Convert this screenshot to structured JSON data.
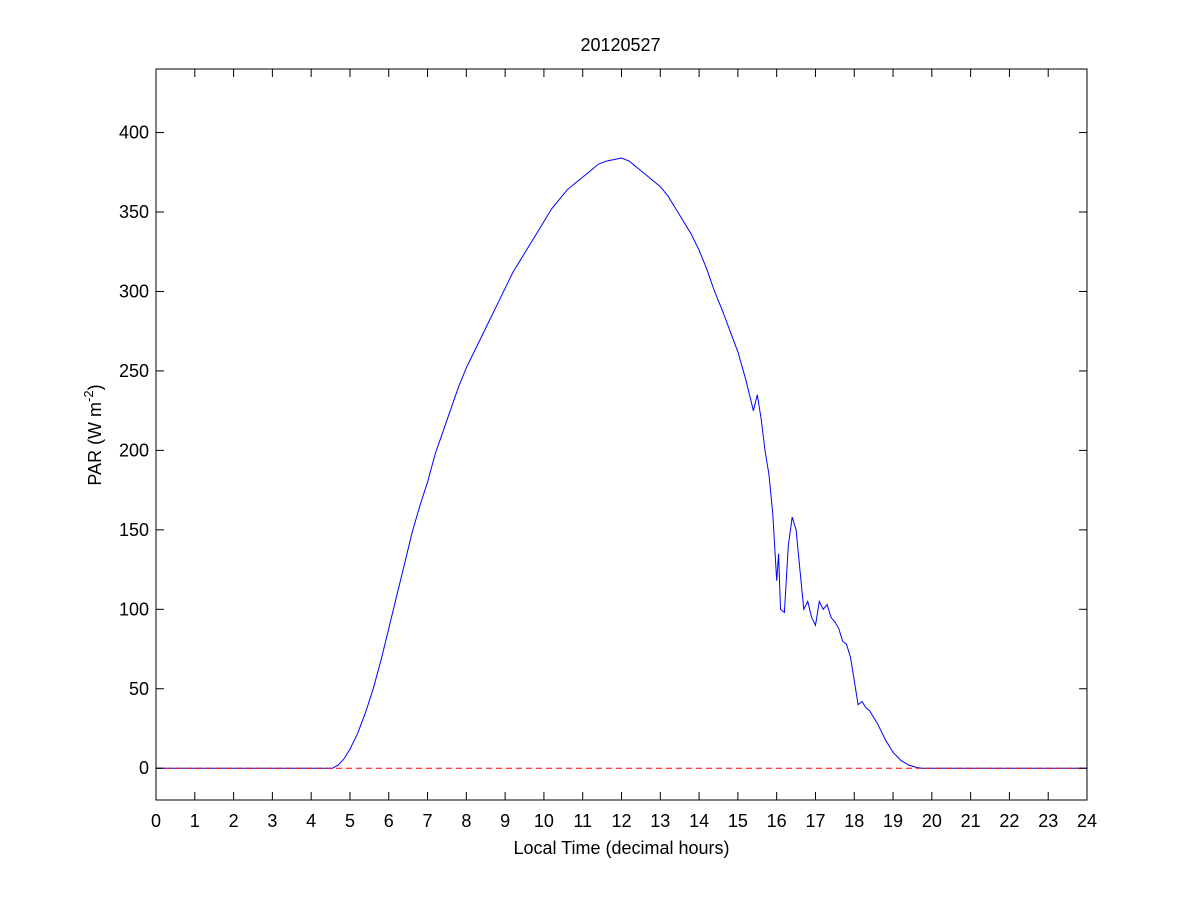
{
  "chart_data": {
    "type": "line",
    "title": "20120527",
    "xlabel": "Local Time (decimal hours)",
    "ylabel": {
      "prefix": "PAR (W m",
      "superscript": "-2",
      "suffix": ")"
    },
    "xlim": [
      0,
      24
    ],
    "ylim": [
      -20,
      440
    ],
    "xticks": [
      0,
      1,
      2,
      3,
      4,
      5,
      6,
      7,
      8,
      9,
      10,
      11,
      12,
      13,
      14,
      15,
      16,
      17,
      18,
      19,
      20,
      21,
      22,
      23,
      24
    ],
    "yticks": [
      0,
      50,
      100,
      150,
      200,
      250,
      300,
      350,
      400
    ],
    "grid": false,
    "series": [
      {
        "style": "solid",
        "color": "#0000ff",
        "x": [
          0,
          4.55,
          4.7,
          4.85,
          5.0,
          5.2,
          5.4,
          5.6,
          5.8,
          6.0,
          6.2,
          6.4,
          6.6,
          6.8,
          7.0,
          7.2,
          7.4,
          7.6,
          7.8,
          8.0,
          8.2,
          8.4,
          8.6,
          8.8,
          9.0,
          9.2,
          9.4,
          9.6,
          9.8,
          10.0,
          10.2,
          10.4,
          10.6,
          10.8,
          11.0,
          11.2,
          11.4,
          11.6,
          11.8,
          12.0,
          12.2,
          12.4,
          12.6,
          12.8,
          13.0,
          13.2,
          13.4,
          13.6,
          13.8,
          14.0,
          14.2,
          14.4,
          14.6,
          14.8,
          15.0,
          15.2,
          15.4,
          15.5,
          15.6,
          15.7,
          15.8,
          15.9,
          16.0,
          16.05,
          16.1,
          16.2,
          16.3,
          16.4,
          16.5,
          16.6,
          16.7,
          16.8,
          16.9,
          17.0,
          17.1,
          17.2,
          17.3,
          17.4,
          17.5,
          17.6,
          17.7,
          17.8,
          17.9,
          18.0,
          18.1,
          18.2,
          18.3,
          18.4,
          18.5,
          18.6,
          18.8,
          19.0,
          19.2,
          19.4,
          19.6,
          19.75,
          20.0,
          24
        ],
        "y": [
          0,
          0,
          2,
          6,
          12,
          22,
          35,
          50,
          68,
          88,
          108,
          128,
          148,
          165,
          180,
          198,
          212,
          226,
          240,
          252,
          262,
          272,
          282,
          292,
          302,
          312,
          320,
          328,
          336,
          344,
          352,
          358,
          364,
          368,
          372,
          376,
          380,
          382,
          383,
          384,
          382,
          378,
          374,
          370,
          366,
          360,
          352,
          344,
          336,
          326,
          314,
          300,
          288,
          275,
          262,
          245,
          225,
          235,
          220,
          200,
          185,
          160,
          118,
          135,
          100,
          98,
          140,
          158,
          150,
          125,
          100,
          105,
          95,
          90,
          105,
          100,
          103,
          95,
          92,
          88,
          80,
          78,
          70,
          55,
          40,
          42,
          38,
          36,
          32,
          28,
          18,
          10,
          5,
          2,
          0.5,
          0,
          0,
          0
        ]
      },
      {
        "style": "dashed",
        "color": "#ff0000",
        "x": [
          0,
          24
        ],
        "y": [
          0,
          0
        ]
      }
    ]
  }
}
